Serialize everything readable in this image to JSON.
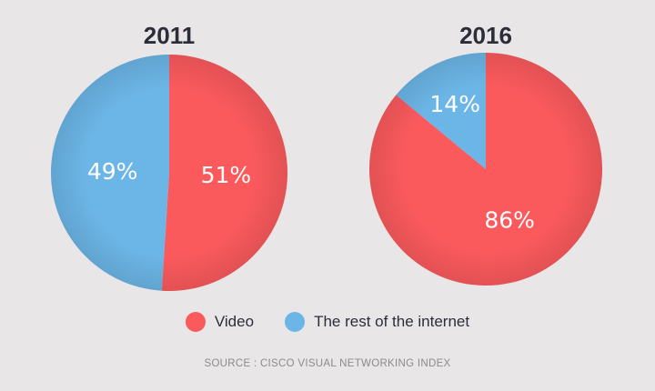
{
  "chart_data": [
    {
      "type": "pie",
      "title": "2011",
      "slices": [
        {
          "name": "Video",
          "value": 51,
          "label": "51%",
          "color": "#fb5a5d"
        },
        {
          "name": "The rest of the internet",
          "value": 49,
          "label": "49%",
          "color": "#6cb6e7"
        }
      ]
    },
    {
      "type": "pie",
      "title": "2016",
      "slices": [
        {
          "name": "Video",
          "value": 86,
          "label": "86%",
          "color": "#fb5a5d"
        },
        {
          "name": "The rest of the internet",
          "value": 14,
          "label": "14%",
          "color": "#6cb6e7"
        }
      ]
    }
  ],
  "legend": {
    "placement": "bottom-center",
    "items": [
      {
        "label": "Video",
        "color": "#fb5a5d"
      },
      {
        "label": "The rest of the internet",
        "color": "#6cb6e7"
      }
    ]
  },
  "source": "SOURCE : CISCO VISUAL NETWORKING INDEX"
}
